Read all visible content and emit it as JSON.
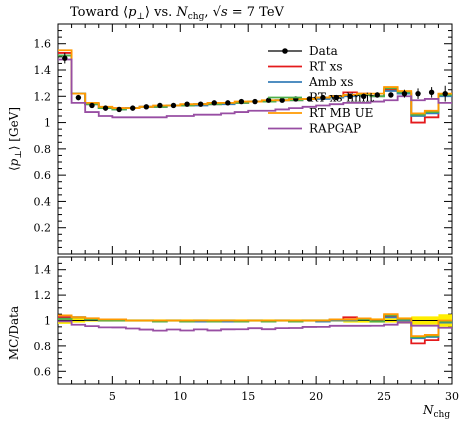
{
  "chart_data": [
    {
      "type": "line",
      "title": "Toward ⟨p⊥⟩ vs. Nchg, √s = 7 TeV",
      "xlabel": "Nchg",
      "ylabel": "⟨p⊥⟩ [GeV]",
      "xlim": [
        1,
        30
      ],
      "ylim": [
        0.0,
        1.75
      ],
      "x_ticks": [
        5,
        10,
        15,
        20,
        25,
        30
      ],
      "y_ticks": [
        0.2,
        0.4,
        0.6,
        0.8,
        1.0,
        1.2,
        1.4,
        1.6
      ],
      "y_tick_labels": [
        "0.2",
        "0.4",
        "0.6",
        "0.8",
        "1",
        "1.2",
        "1.4",
        "1.6"
      ],
      "legend_position": "top-right",
      "data_points": {
        "name": "Data",
        "color": "#000000",
        "x": [
          1.5,
          2.5,
          3.5,
          4.5,
          5.5,
          6.5,
          7.5,
          8.5,
          9.5,
          10.5,
          11.5,
          12.5,
          13.5,
          14.5,
          15.5,
          16.5,
          17.5,
          18.5,
          19.5,
          20.5,
          21.5,
          22.5,
          23.5,
          24.5,
          25.5,
          26.5,
          27.5,
          28.5,
          29.5
        ],
        "y": [
          1.49,
          1.19,
          1.13,
          1.11,
          1.1,
          1.11,
          1.12,
          1.13,
          1.13,
          1.14,
          1.14,
          1.15,
          1.15,
          1.16,
          1.16,
          1.17,
          1.17,
          1.18,
          1.18,
          1.19,
          1.19,
          1.2,
          1.2,
          1.21,
          1.21,
          1.22,
          1.22,
          1.23,
          1.22
        ],
        "yerr": [
          0.04,
          0.02,
          0.01,
          0.01,
          0.01,
          0.01,
          0.01,
          0.01,
          0.01,
          0.01,
          0.01,
          0.01,
          0.01,
          0.01,
          0.01,
          0.01,
          0.01,
          0.01,
          0.01,
          0.01,
          0.01,
          0.02,
          0.02,
          0.02,
          0.02,
          0.03,
          0.04,
          0.04,
          0.06
        ]
      },
      "series": [
        {
          "name": "RT xs",
          "color": "#e41a1c",
          "edges": [
            1,
            2,
            3,
            4,
            5,
            6,
            7,
            8,
            9,
            10,
            11,
            12,
            13,
            14,
            15,
            16,
            17,
            18,
            19,
            20,
            21,
            22,
            23,
            24,
            25,
            26,
            27,
            28,
            29,
            30
          ],
          "values": [
            1.53,
            1.22,
            1.14,
            1.11,
            1.11,
            1.11,
            1.12,
            1.12,
            1.13,
            1.13,
            1.14,
            1.14,
            1.15,
            1.15,
            1.16,
            1.16,
            1.17,
            1.17,
            1.18,
            1.19,
            1.2,
            1.23,
            1.22,
            1.2,
            1.25,
            1.22,
            1.0,
            1.04,
            1.21
          ]
        },
        {
          "name": "Amb xs",
          "color": "#377eb8",
          "edges": [
            1,
            2,
            3,
            4,
            5,
            6,
            7,
            8,
            9,
            10,
            11,
            12,
            13,
            14,
            15,
            16,
            17,
            18,
            19,
            20,
            21,
            22,
            23,
            24,
            25,
            26,
            27,
            28,
            29,
            30
          ],
          "values": [
            1.51,
            1.22,
            1.14,
            1.11,
            1.1,
            1.11,
            1.12,
            1.12,
            1.13,
            1.13,
            1.13,
            1.14,
            1.14,
            1.15,
            1.16,
            1.16,
            1.17,
            1.17,
            1.18,
            1.18,
            1.19,
            1.2,
            1.21,
            1.2,
            1.24,
            1.22,
            1.05,
            1.07,
            1.2
          ]
        },
        {
          "name": "RT xs limit",
          "color": "#4daf4a",
          "edges": [
            1,
            2,
            3,
            4,
            5,
            6,
            7,
            8,
            9,
            10,
            11,
            12,
            13,
            14,
            15,
            16,
            17,
            18,
            19,
            20,
            21,
            22,
            23,
            24,
            25,
            26,
            27,
            28,
            29,
            30
          ],
          "values": [
            1.51,
            1.22,
            1.14,
            1.11,
            1.1,
            1.11,
            1.12,
            1.12,
            1.13,
            1.13,
            1.14,
            1.14,
            1.15,
            1.15,
            1.16,
            1.16,
            1.17,
            1.17,
            1.18,
            1.19,
            1.2,
            1.21,
            1.21,
            1.2,
            1.26,
            1.23,
            1.06,
            1.08,
            1.21
          ]
        },
        {
          "name": "RT MB UE",
          "color": "#ff9900",
          "edges": [
            1,
            2,
            3,
            4,
            5,
            6,
            7,
            8,
            9,
            10,
            11,
            12,
            13,
            14,
            15,
            16,
            17,
            18,
            19,
            20,
            21,
            22,
            23,
            24,
            25,
            26,
            27,
            28,
            29,
            30
          ],
          "values": [
            1.55,
            1.22,
            1.15,
            1.12,
            1.11,
            1.11,
            1.12,
            1.13,
            1.13,
            1.14,
            1.14,
            1.15,
            1.15,
            1.16,
            1.16,
            1.17,
            1.17,
            1.18,
            1.18,
            1.19,
            1.2,
            1.21,
            1.22,
            1.22,
            1.27,
            1.24,
            1.07,
            1.09,
            1.22
          ]
        },
        {
          "name": "RAPGAP",
          "color": "#984ea3",
          "edges": [
            1,
            2,
            3,
            4,
            5,
            6,
            7,
            8,
            9,
            10,
            11,
            12,
            13,
            14,
            15,
            16,
            17,
            18,
            19,
            20,
            21,
            22,
            23,
            24,
            25,
            26,
            27,
            28,
            29,
            30
          ],
          "values": [
            1.48,
            1.15,
            1.08,
            1.05,
            1.04,
            1.04,
            1.04,
            1.04,
            1.05,
            1.05,
            1.06,
            1.06,
            1.07,
            1.08,
            1.09,
            1.09,
            1.1,
            1.11,
            1.12,
            1.13,
            1.14,
            1.15,
            1.15,
            1.16,
            1.17,
            1.2,
            1.17,
            1.18,
            1.15
          ]
        }
      ]
    },
    {
      "type": "line",
      "xlabel": "Nchg",
      "ylabel": "MC/Data",
      "xlim": [
        1,
        30
      ],
      "ylim": [
        0.5,
        1.5
      ],
      "x_ticks": [
        5,
        10,
        15,
        20,
        25,
        30
      ],
      "x_tick_labels": [
        "5",
        "10",
        "15",
        "20",
        "25",
        "30"
      ],
      "y_ticks": [
        0.6,
        0.8,
        1.0,
        1.2,
        1.4
      ],
      "y_tick_labels": [
        "0.6",
        "0.8",
        "1",
        "1.2",
        "1.4"
      ],
      "band_color": "#ffee00",
      "band_reference": "data relative uncertainty",
      "series_reference": "ratio of each MC histogram to the data"
    }
  ],
  "title_parts": {
    "prefix": "Toward ⟨",
    "p_main": "p",
    "p_sub": "⊥",
    "after_p": "⟩ vs. ",
    "n_main": "N",
    "n_sub": "chg",
    "comma": ", ",
    "sqrt_symbol": "√",
    "s_symbol": "s",
    "energy": " = 7 TeV"
  },
  "axis_text": {
    "y_main_prefix": "⟨",
    "y_main_p": "p",
    "y_main_sub": "⊥",
    "y_main_suffix": "⟩ [GeV]",
    "y_ratio": "MC/Data",
    "x_main": "N",
    "x_sub": "chg"
  }
}
